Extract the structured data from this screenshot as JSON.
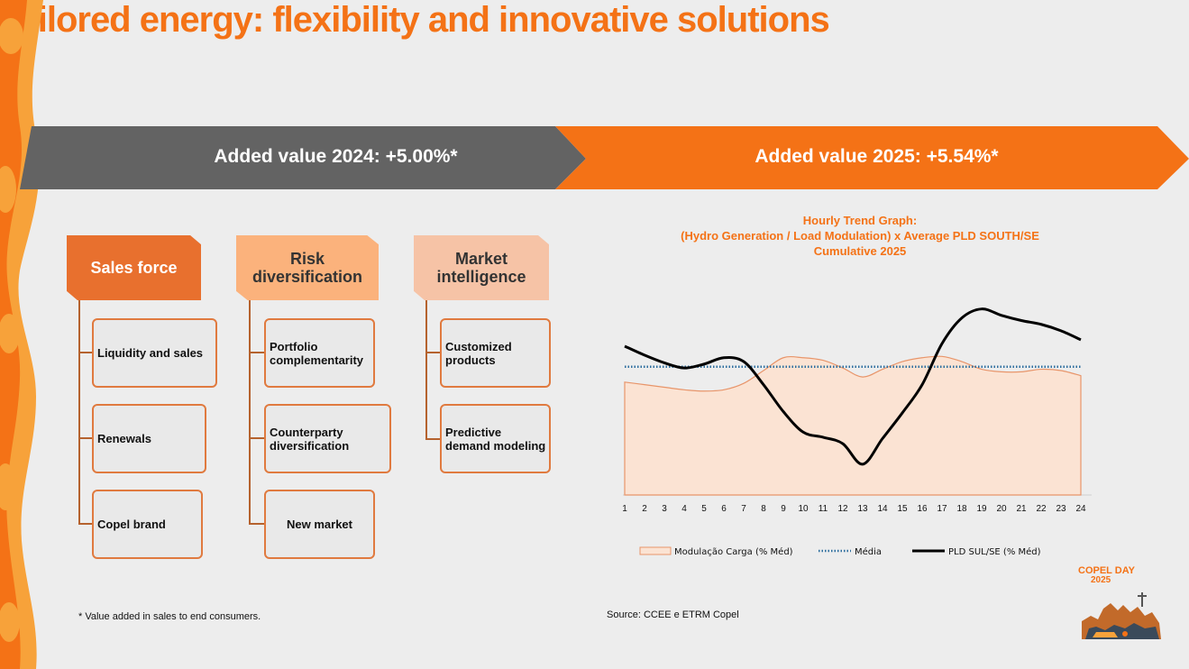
{
  "slide": {
    "title": "Tailored energy: flexibility and innovative solutions",
    "colors": {
      "accent": "#f47216",
      "dark_banner": "#636363"
    }
  },
  "banner": {
    "left_label": "Added value 2024: +5.00%*",
    "right_label": "Added value 2025: +5.54%*"
  },
  "columns": [
    {
      "header": "Sales force",
      "items": [
        "Liquidity and sales",
        "Renewals",
        "Copel brand"
      ]
    },
    {
      "header": "Risk diversification",
      "items": [
        "Portfolio complementarity",
        "Counterparty diversification",
        "New market"
      ]
    },
    {
      "header": "Market intelligence",
      "items": [
        "Customized products",
        "Predictive demand modeling"
      ]
    }
  ],
  "chart_data": {
    "type": "line",
    "title_lines": [
      "Hourly Trend Graph:",
      "(Hydro Generation / Load Modulation) x Average PLD SOUTH/SE",
      "Cumulative 2025"
    ],
    "x": [
      "1",
      "2",
      "3",
      "4",
      "5",
      "6",
      "7",
      "8",
      "9",
      "10",
      "11",
      "12",
      "13",
      "14",
      "15",
      "16",
      "17",
      "18",
      "19",
      "20",
      "21",
      "22",
      "23",
      "24"
    ],
    "series": [
      {
        "name": "Modulação Carga (% Méd)",
        "kind": "area",
        "values": [
          0.88,
          0.86,
          0.84,
          0.82,
          0.81,
          0.82,
          0.87,
          0.97,
          1.07,
          1.07,
          1.05,
          0.99,
          0.92,
          0.98,
          1.04,
          1.07,
          1.08,
          1.04,
          0.98,
          0.96,
          0.96,
          0.98,
          0.97,
          0.93
        ]
      },
      {
        "name": "Média",
        "kind": "dotted",
        "values": [
          1,
          1,
          1,
          1,
          1,
          1,
          1,
          1,
          1,
          1,
          1,
          1,
          1,
          1,
          1,
          1,
          1,
          1,
          1,
          1,
          1,
          1,
          1,
          1
        ]
      },
      {
        "name": "PLD SUL/SE (% Méd)",
        "kind": "line",
        "values": [
          1.16,
          1.09,
          1.03,
          0.99,
          1.02,
          1.07,
          1.04,
          0.86,
          0.65,
          0.49,
          0.45,
          0.4,
          0.24,
          0.44,
          0.64,
          0.86,
          1.18,
          1.38,
          1.45,
          1.4,
          1.36,
          1.33,
          1.28,
          1.21
        ]
      }
    ],
    "ylim": [
      0,
      1.75
    ]
  },
  "footnote": "* Value added in sales to end consumers.",
  "source": "Source: CCEE e ETRM Copel",
  "logo": {
    "text": "COPEL DAY",
    "year": "2025"
  }
}
